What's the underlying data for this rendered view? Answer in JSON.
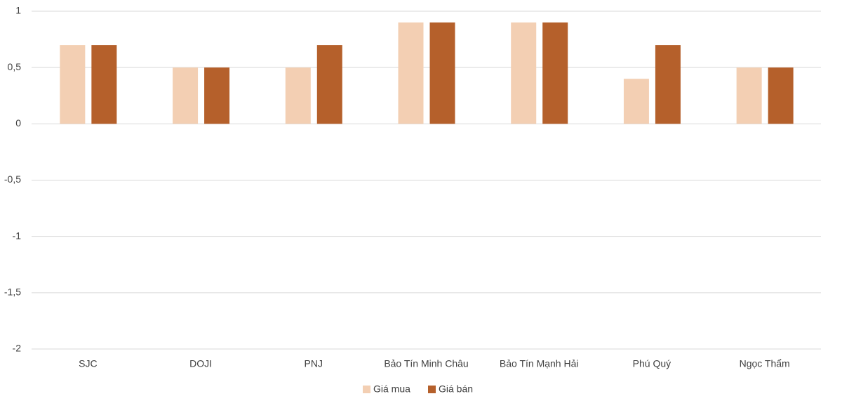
{
  "chart_data": {
    "type": "bar",
    "categories": [
      "SJC",
      "DOJI",
      "PNJ",
      "Bảo Tín Minh Châu",
      "Bảo Tín Mạnh Hải",
      "Phú Quý",
      "Ngọc Thẩm"
    ],
    "series": [
      {
        "name": "Giá mua",
        "color": "#f3cfb3",
        "values": [
          0.7,
          0.5,
          0.5,
          0.9,
          0.9,
          0.4,
          0.5
        ]
      },
      {
        "name": "Giá bán",
        "color": "#b5602b",
        "values": [
          0.7,
          0.5,
          0.7,
          0.9,
          0.9,
          0.7,
          0.5
        ]
      }
    ],
    "ylim": [
      -2,
      1
    ],
    "yticks": [
      -2,
      {
        "value": -1.5,
        "label": "-1,5"
      },
      -1,
      {
        "value": -0.5,
        "label": "-0,5"
      },
      0,
      {
        "value": 0.5,
        "label": "0,5"
      },
      1
    ],
    "grid": true,
    "legend": "bottom"
  }
}
